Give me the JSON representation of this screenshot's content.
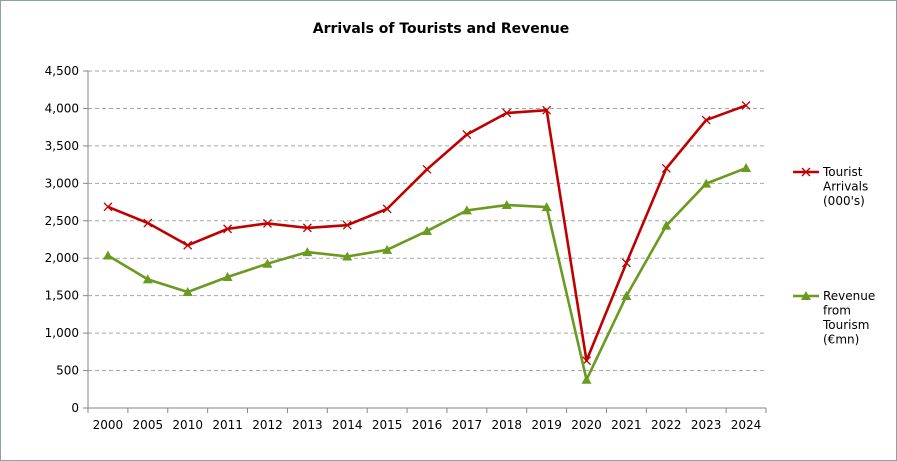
{
  "chart_data": {
    "type": "line",
    "title": "Arrivals of Tourists and Revenue",
    "categories": [
      "2000",
      "2005",
      "2010",
      "2011",
      "2012",
      "2013",
      "2014",
      "2015",
      "2016",
      "2017",
      "2018",
      "2019",
      "2020",
      "2021",
      "2022",
      "2023",
      "2024"
    ],
    "ylim": [
      0,
      4500
    ],
    "yticks": [
      0,
      500,
      1000,
      1500,
      2000,
      2500,
      3000,
      3500,
      4000,
      4500
    ],
    "ytick_labels": [
      "0",
      "500",
      "1,000",
      "1,500",
      "2,000",
      "2,500",
      "3,000",
      "3,500",
      "4,000",
      "4,500"
    ],
    "grid": true,
    "legend_position": "right",
    "series": [
      {
        "name": "Tourist Arrivals (000's)",
        "legend_lines": [
          "Tourist",
          "Arrivals",
          "(000's)"
        ],
        "color": "#c00000",
        "marker": "x",
        "values": [
          2686,
          2470,
          2173,
          2392,
          2465,
          2405,
          2441,
          2659,
          3187,
          3652,
          3939,
          3977,
          632,
          1937,
          3201,
          3845,
          4040
        ]
      },
      {
        "name": "Revenue from Tourism (€mn)",
        "legend_lines": [
          "Revenue",
          "from",
          "Tourism",
          "(€mn)"
        ],
        "color": "#6a9a1f",
        "marker": "triangle",
        "values": [
          2036,
          1718,
          1549,
          1749,
          1927,
          2082,
          2023,
          2112,
          2363,
          2639,
          2710,
          2683,
          377,
          1496,
          2436,
          2996,
          3204
        ]
      }
    ]
  }
}
